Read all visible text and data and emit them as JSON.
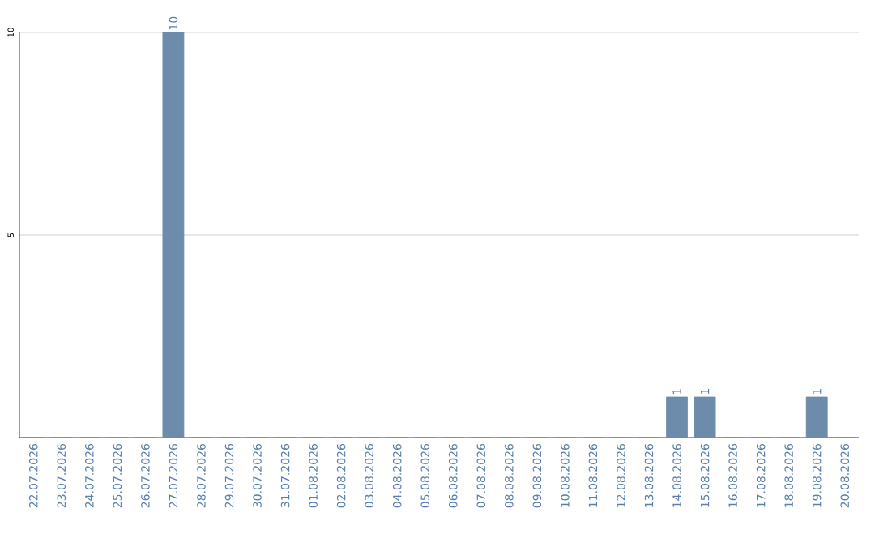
{
  "chart_data": {
    "type": "bar",
    "categories": [
      "22.07.2026",
      "23.07.2026",
      "24.07.2026",
      "25.07.2026",
      "26.07.2026",
      "27.07.2026",
      "28.07.2026",
      "29.07.2026",
      "30.07.2026",
      "31.07.2026",
      "01.08.2026",
      "02.08.2026",
      "03.08.2026",
      "04.08.2026",
      "05.08.2026",
      "06.08.2026",
      "07.08.2026",
      "08.08.2026",
      "09.08.2026",
      "10.08.2026",
      "11.08.2026",
      "12.08.2026",
      "13.08.2026",
      "14.08.2026",
      "15.08.2026",
      "16.08.2026",
      "17.08.2026",
      "18.08.2026",
      "19.08.2026",
      "20.08.2026"
    ],
    "values": [
      0,
      0,
      0,
      0,
      0,
      10,
      0,
      0,
      0,
      0,
      0,
      0,
      0,
      0,
      0,
      0,
      0,
      0,
      0,
      0,
      0,
      0,
      0,
      1,
      1,
      0,
      0,
      0,
      1,
      0
    ],
    "value_labels": [
      null,
      null,
      null,
      null,
      null,
      "10",
      null,
      null,
      null,
      null,
      null,
      null,
      null,
      null,
      null,
      null,
      null,
      null,
      null,
      null,
      null,
      null,
      null,
      "1",
      "1",
      null,
      null,
      null,
      "1",
      null
    ],
    "color": "#6d8cab",
    "ylim": [
      0,
      10
    ],
    "yticks": [
      5,
      10
    ],
    "grid": "y"
  }
}
